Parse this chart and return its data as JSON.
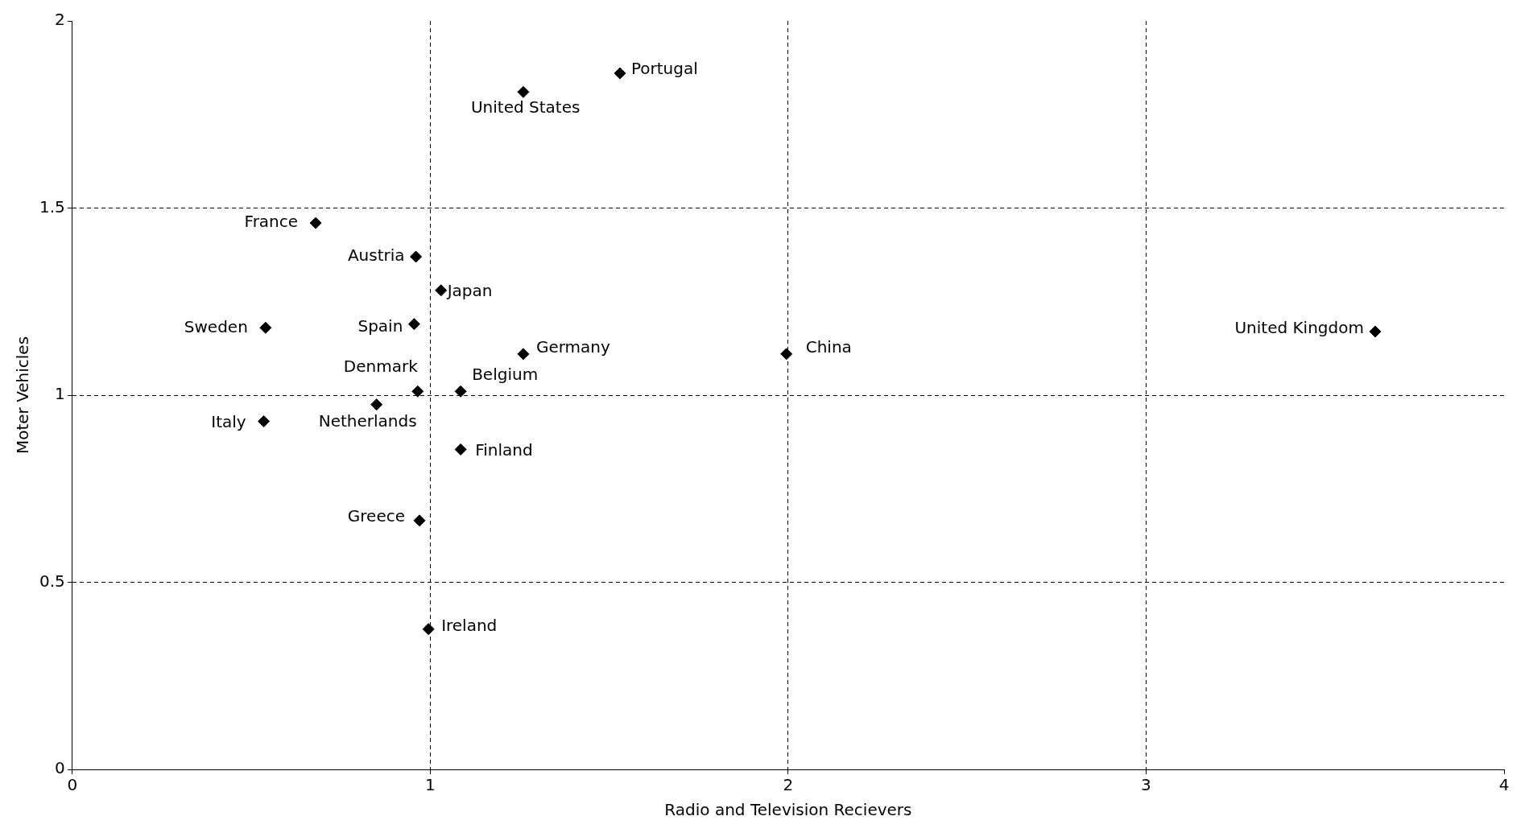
{
  "chart_data": {
    "type": "scatter",
    "xlabel": "Radio and Television Recievers",
    "ylabel": "Moter Vehicles",
    "xlim": [
      0,
      4
    ],
    "xticks": [
      0,
      1,
      2,
      3,
      4
    ],
    "ylim": [
      0,
      2
    ],
    "yticks": [
      0,
      0.5,
      1,
      1.5,
      2
    ],
    "grid": true,
    "line_style": "dashed",
    "legend": false,
    "marker": "diamond",
    "series": [
      {
        "name": "Portugal",
        "color": "#000000",
        "x": [
          1.53
        ],
        "values": [
          1.86
        ]
      },
      {
        "name": "United States",
        "color": "#000000",
        "x": [
          1.26
        ],
        "values": [
          1.81
        ]
      },
      {
        "name": "France",
        "color": "#000000",
        "x": [
          0.68
        ],
        "values": [
          1.46
        ]
      },
      {
        "name": "Austria",
        "color": "#000000",
        "x": [
          0.96
        ],
        "values": [
          1.37
        ]
      },
      {
        "name": "Japan",
        "color": "#000000",
        "x": [
          1.03
        ],
        "values": [
          1.28
        ]
      },
      {
        "name": "Sweden",
        "color": "#000000",
        "x": [
          0.54
        ],
        "values": [
          1.18
        ]
      },
      {
        "name": "Spain",
        "color": "#000000",
        "x": [
          0.955
        ],
        "values": [
          1.19
        ]
      },
      {
        "name": "Germany",
        "color": "#000000",
        "x": [
          1.26
        ],
        "values": [
          1.11
        ]
      },
      {
        "name": "China",
        "color": "#000000",
        "x": [
          1.995
        ],
        "values": [
          1.11
        ]
      },
      {
        "name": "United Kingdom",
        "color": "#000000",
        "x": [
          3.64
        ],
        "values": [
          1.17
        ]
      },
      {
        "name": "Denmark",
        "color": "#000000",
        "x": [
          0.965
        ],
        "values": [
          1.01
        ]
      },
      {
        "name": "Belgium",
        "color": "#000000",
        "x": [
          1.085
        ],
        "values": [
          1.01
        ]
      },
      {
        "name": "Netherlands",
        "color": "#000000",
        "x": [
          0.85
        ],
        "values": [
          0.975
        ]
      },
      {
        "name": "Italy",
        "color": "#000000",
        "x": [
          0.535
        ],
        "values": [
          0.93
        ]
      },
      {
        "name": "Finland",
        "color": "#000000",
        "x": [
          1.085
        ],
        "values": [
          0.855
        ]
      },
      {
        "name": "Greece",
        "color": "#000000",
        "x": [
          0.97
        ],
        "values": [
          0.665
        ]
      },
      {
        "name": "Ireland",
        "color": "#000000",
        "x": [
          0.995
        ],
        "values": [
          0.375
        ]
      }
    ]
  }
}
